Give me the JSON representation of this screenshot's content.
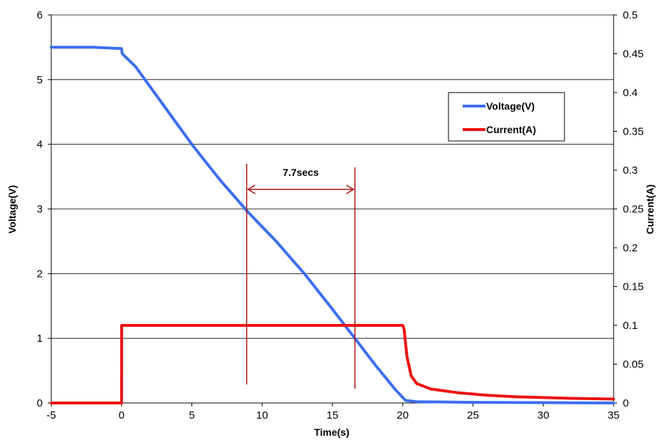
{
  "chart_data": {
    "type": "line",
    "title": "",
    "xlabel": "Time(s)",
    "ylabel_left": "Voltage(V)",
    "ylabel_right": "Current(A)",
    "xlim": [
      -5,
      35
    ],
    "ylim_left": [
      0,
      6
    ],
    "ylim_right": [
      0,
      0.5
    ],
    "x_ticks": [
      "-5",
      "0",
      "5",
      "10",
      "15",
      "20",
      "25",
      "30",
      "35"
    ],
    "y_ticks_left": [
      "0",
      "1",
      "2",
      "3",
      "4",
      "5",
      "6"
    ],
    "y_ticks_right": [
      "0",
      "0.05",
      "0.1",
      "0.15",
      "0.2",
      "0.25",
      "0.3",
      "0.35",
      "0.4",
      "0.45",
      "0.5"
    ],
    "grid": "horizontal",
    "legend_position": "top-right",
    "series": [
      {
        "name": "Voltage(V)",
        "axis": "left",
        "color": "#3d6ef0",
        "points": [
          [
            -5,
            5.5
          ],
          [
            -2,
            5.5
          ],
          [
            0,
            5.48
          ],
          [
            0.05,
            5.4
          ],
          [
            1,
            5.2
          ],
          [
            3,
            4.6
          ],
          [
            5,
            4.0
          ],
          [
            7,
            3.45
          ],
          [
            9,
            2.95
          ],
          [
            11,
            2.5
          ],
          [
            13,
            2.0
          ],
          [
            15,
            1.45
          ],
          [
            16.6,
            1.0
          ],
          [
            18,
            0.6
          ],
          [
            19.5,
            0.2
          ],
          [
            20.2,
            0.04
          ],
          [
            21,
            0.02
          ],
          [
            25,
            0.01
          ],
          [
            35,
            0.0
          ]
        ]
      },
      {
        "name": "Current(A)",
        "axis": "right",
        "color": "#ee1111",
        "points": [
          [
            -5,
            0.0
          ],
          [
            0,
            0.0
          ],
          [
            0.01,
            0.1
          ],
          [
            20,
            0.1
          ],
          [
            20.1,
            0.095
          ],
          [
            20.3,
            0.06
          ],
          [
            20.6,
            0.035
          ],
          [
            21,
            0.025
          ],
          [
            22,
            0.018
          ],
          [
            24,
            0.013
          ],
          [
            26,
            0.01
          ],
          [
            28,
            0.008
          ],
          [
            30,
            0.007
          ],
          [
            32,
            0.006
          ],
          [
            35,
            0.005
          ]
        ]
      }
    ],
    "annotation": {
      "label": "7.7secs",
      "x_start": 8.9,
      "x_end": 16.6,
      "color": "#aa1111"
    }
  }
}
